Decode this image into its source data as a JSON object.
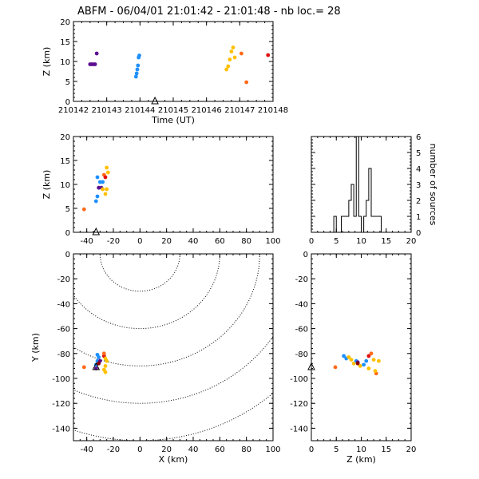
{
  "title": "ABFM - 06/04/01 21:01:42 - 21:01:48 - nb loc.=      28",
  "colors": {
    "purple": "#5b0f8f",
    "blue": "#1e90ff",
    "yellow": "#ffc000",
    "orange": "#ff6a1a",
    "red": "#e01010",
    "darkred": "#8b0000"
  },
  "chart_data": [
    {
      "id": "time_z",
      "type": "scatter",
      "xlabel": "Time (UT)",
      "ylabel": "Z (km)",
      "xlim": [
        210142,
        210148
      ],
      "ylim": [
        0,
        20
      ],
      "xticks": [
        "210142",
        "210143",
        "210144",
        "210145",
        "210146",
        "210147",
        "210148"
      ],
      "yticks": [
        "0",
        "5",
        "10",
        "15",
        "20"
      ],
      "station_marker": {
        "x": 210144.45,
        "y": 0
      },
      "points": [
        {
          "x": 210142.5,
          "y": 9.3,
          "c": "purple"
        },
        {
          "x": 210142.55,
          "y": 9.3,
          "c": "purple"
        },
        {
          "x": 210142.6,
          "y": 9.3,
          "c": "purple"
        },
        {
          "x": 210142.65,
          "y": 9.3,
          "c": "purple"
        },
        {
          "x": 210142.7,
          "y": 12.0,
          "c": "purple"
        },
        {
          "x": 210143.88,
          "y": 6.2,
          "c": "blue"
        },
        {
          "x": 210143.9,
          "y": 7.0,
          "c": "blue"
        },
        {
          "x": 210143.92,
          "y": 8.0,
          "c": "blue"
        },
        {
          "x": 210143.94,
          "y": 9.0,
          "c": "blue"
        },
        {
          "x": 210143.96,
          "y": 11.0,
          "c": "blue"
        },
        {
          "x": 210143.98,
          "y": 11.5,
          "c": "blue"
        },
        {
          "x": 210146.6,
          "y": 8.0,
          "c": "yellow"
        },
        {
          "x": 210146.65,
          "y": 8.8,
          "c": "yellow"
        },
        {
          "x": 210146.7,
          "y": 10.5,
          "c": "yellow"
        },
        {
          "x": 210146.75,
          "y": 12.5,
          "c": "yellow"
        },
        {
          "x": 210146.8,
          "y": 13.5,
          "c": "yellow"
        },
        {
          "x": 210146.85,
          "y": 11.0,
          "c": "yellow"
        },
        {
          "x": 210147.05,
          "y": 12.0,
          "c": "orange"
        },
        {
          "x": 210147.2,
          "y": 4.8,
          "c": "orange"
        },
        {
          "x": 210147.85,
          "y": 11.6,
          "c": "red"
        }
      ]
    },
    {
      "id": "x_z",
      "type": "scatter",
      "ylabel": "Z (km)",
      "xlim": [
        -50,
        100
      ],
      "ylim": [
        0,
        20
      ],
      "xticks": [
        "-40",
        "-20",
        "0",
        "20",
        "40",
        "60",
        "80",
        "100"
      ],
      "yticks": [
        "0",
        "5",
        "10",
        "15",
        "20"
      ],
      "station_marker": {
        "x": -33,
        "y": 0
      },
      "points": [
        {
          "x": -42,
          "y": 4.8,
          "c": "orange"
        },
        {
          "x": -33,
          "y": 6.5,
          "c": "blue"
        },
        {
          "x": -32,
          "y": 7.5,
          "c": "blue"
        },
        {
          "x": -32,
          "y": 11.5,
          "c": "blue"
        },
        {
          "x": -30,
          "y": 10.5,
          "c": "blue"
        },
        {
          "x": -31,
          "y": 9.3,
          "c": "purple"
        },
        {
          "x": -29,
          "y": 9.3,
          "c": "purple"
        },
        {
          "x": -28,
          "y": 10.5,
          "c": "blue"
        },
        {
          "x": -26,
          "y": 8.0,
          "c": "yellow"
        },
        {
          "x": -25,
          "y": 9.0,
          "c": "yellow"
        },
        {
          "x": -27,
          "y": 12.0,
          "c": "orange"
        },
        {
          "x": -26,
          "y": 11.5,
          "c": "red"
        },
        {
          "x": -25,
          "y": 13.5,
          "c": "yellow"
        },
        {
          "x": -24,
          "y": 12.5,
          "c": "yellow"
        },
        {
          "x": -28,
          "y": 9.0,
          "c": "yellow"
        }
      ]
    },
    {
      "id": "histogram",
      "type": "bar",
      "ylabel": "number of sources",
      "xlim": [
        0,
        20
      ],
      "ylim": [
        0,
        6
      ],
      "xticks": [
        "0",
        "5",
        "10",
        "15",
        "20"
      ],
      "yticks": [
        "0",
        "1",
        "2",
        "3",
        "4",
        "5",
        "6"
      ],
      "bin_width": 0.5,
      "bins": [
        {
          "x": 4.5,
          "v": 1
        },
        {
          "x": 6.0,
          "v": 1
        },
        {
          "x": 6.5,
          "v": 1
        },
        {
          "x": 7.0,
          "v": 1
        },
        {
          "x": 7.5,
          "v": 2
        },
        {
          "x": 8.0,
          "v": 3
        },
        {
          "x": 8.5,
          "v": 1
        },
        {
          "x": 9.0,
          "v": 6
        },
        {
          "x": 9.5,
          "v": 1
        },
        {
          "x": 10.5,
          "v": 1
        },
        {
          "x": 11.0,
          "v": 2
        },
        {
          "x": 11.5,
          "v": 4
        },
        {
          "x": 12.0,
          "v": 1
        },
        {
          "x": 12.5,
          "v": 1
        },
        {
          "x": 13.0,
          "v": 1
        },
        {
          "x": 13.5,
          "v": 1
        }
      ]
    },
    {
      "id": "x_y",
      "type": "scatter",
      "xlabel": "X (km)",
      "ylabel": "Y (km)",
      "xlim": [
        -50,
        100
      ],
      "ylim": [
        -150,
        0
      ],
      "xticks": [
        "-40",
        "-20",
        "0",
        "20",
        "40",
        "60",
        "80",
        "100"
      ],
      "yticks": [
        "-140",
        "-120",
        "-100",
        "-80",
        "-60",
        "-40",
        "-20",
        "0"
      ],
      "contour_radii": [
        30,
        60,
        90,
        120,
        150
      ],
      "station_marker": {
        "x": -33,
        "y": -91
      },
      "points": [
        {
          "x": -42,
          "y": -91,
          "c": "orange"
        },
        {
          "x": -32,
          "y": -81,
          "c": "blue"
        },
        {
          "x": -31,
          "y": -83,
          "c": "blue"
        },
        {
          "x": -32,
          "y": -86,
          "c": "blue"
        },
        {
          "x": -33,
          "y": -89,
          "c": "blue"
        },
        {
          "x": -30,
          "y": -86,
          "c": "purple"
        },
        {
          "x": -31,
          "y": -88,
          "c": "darkred"
        },
        {
          "x": -27,
          "y": -82,
          "c": "red"
        },
        {
          "x": -26,
          "y": -84,
          "c": "yellow"
        },
        {
          "x": -25,
          "y": -86,
          "c": "yellow"
        },
        {
          "x": -26,
          "y": -90,
          "c": "yellow"
        },
        {
          "x": -27,
          "y": -93,
          "c": "yellow"
        },
        {
          "x": -26,
          "y": -95,
          "c": "yellow"
        },
        {
          "x": -27,
          "y": -80,
          "c": "orange"
        },
        {
          "x": -33,
          "y": -92,
          "c": "purple"
        }
      ]
    },
    {
      "id": "z_y",
      "type": "scatter",
      "xlabel": "Z (km)",
      "xlim": [
        0,
        20
      ],
      "ylim": [
        -150,
        0
      ],
      "xticks": [
        "0",
        "5",
        "10",
        "15",
        "20"
      ],
      "yticks": [
        "-140",
        "-120",
        "-100",
        "-80",
        "-60",
        "-40",
        "-20",
        "0"
      ],
      "station_marker": {
        "x": 0,
        "y": -91
      },
      "points": [
        {
          "x": 4.8,
          "y": -91,
          "c": "orange"
        },
        {
          "x": 6.5,
          "y": -82,
          "c": "blue"
        },
        {
          "x": 7.0,
          "y": -84,
          "c": "blue"
        },
        {
          "x": 7.5,
          "y": -83,
          "c": "yellow"
        },
        {
          "x": 8.0,
          "y": -85,
          "c": "yellow"
        },
        {
          "x": 8.5,
          "y": -88,
          "c": "yellow"
        },
        {
          "x": 9.0,
          "y": -86,
          "c": "blue"
        },
        {
          "x": 9.3,
          "y": -87,
          "c": "purple"
        },
        {
          "x": 9.3,
          "y": -88,
          "c": "darkred"
        },
        {
          "x": 9.8,
          "y": -90,
          "c": "yellow"
        },
        {
          "x": 10.5,
          "y": -89,
          "c": "blue"
        },
        {
          "x": 11.0,
          "y": -86,
          "c": "blue"
        },
        {
          "x": 11.5,
          "y": -82,
          "c": "red"
        },
        {
          "x": 12.0,
          "y": -80,
          "c": "orange"
        },
        {
          "x": 11.5,
          "y": -92,
          "c": "yellow"
        },
        {
          "x": 12.5,
          "y": -85,
          "c": "yellow"
        },
        {
          "x": 13.5,
          "y": -86,
          "c": "yellow"
        },
        {
          "x": 13.0,
          "y": -96,
          "c": "orange"
        },
        {
          "x": 12.8,
          "y": -94,
          "c": "yellow"
        }
      ]
    }
  ]
}
